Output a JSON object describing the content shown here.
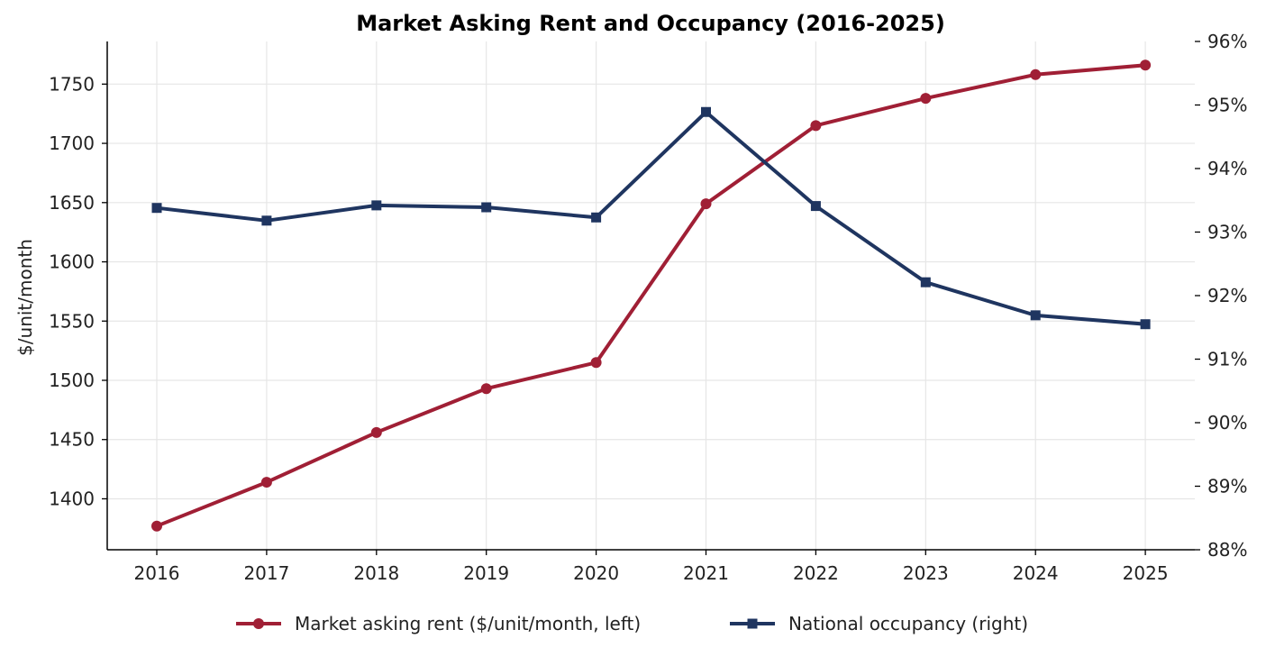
{
  "chart_data": {
    "type": "line",
    "title": "Market Asking Rent and Occupancy (2016-2025)",
    "x": [
      2016,
      2017,
      2018,
      2019,
      2020,
      2021,
      2022,
      2023,
      2024,
      2025
    ],
    "x_tick_labels": [
      "2016",
      "2017",
      "2018",
      "2019",
      "2020",
      "2021",
      "2022",
      "2023",
      "2024",
      "2025"
    ],
    "ylabel": "$/unit/month",
    "ylim": [
      1357,
      1786
    ],
    "y_ticks": [
      1400,
      1450,
      1500,
      1550,
      1600,
      1650,
      1700,
      1750
    ],
    "y_tick_labels": [
      "1400",
      "1450",
      "1500",
      "1550",
      "1600",
      "1650",
      "1700",
      "1750"
    ],
    "y2lim": [
      88,
      96
    ],
    "y2_ticks": [
      88,
      89,
      90,
      91,
      92,
      93,
      94,
      95,
      96
    ],
    "y2_tick_labels": [
      "88%",
      "89%",
      "90%",
      "91%",
      "92%",
      "93%",
      "94%",
      "95%",
      "96%"
    ],
    "grid": true,
    "legend_position": "bottom-center",
    "series": [
      {
        "name": "Market asking rent ($/unit/month, left)",
        "axis": "left",
        "marker": "circle",
        "color": "#a01f35",
        "values": [
          1377,
          1414,
          1456,
          1493,
          1515,
          1649,
          1715,
          1738,
          1758,
          1766
        ]
      },
      {
        "name": "National occupancy (right)",
        "axis": "right",
        "marker": "square",
        "color": "#1f3560",
        "values": [
          93.38,
          93.18,
          93.42,
          93.39,
          93.23,
          94.89,
          93.41,
          92.21,
          91.69,
          91.55
        ]
      }
    ]
  }
}
